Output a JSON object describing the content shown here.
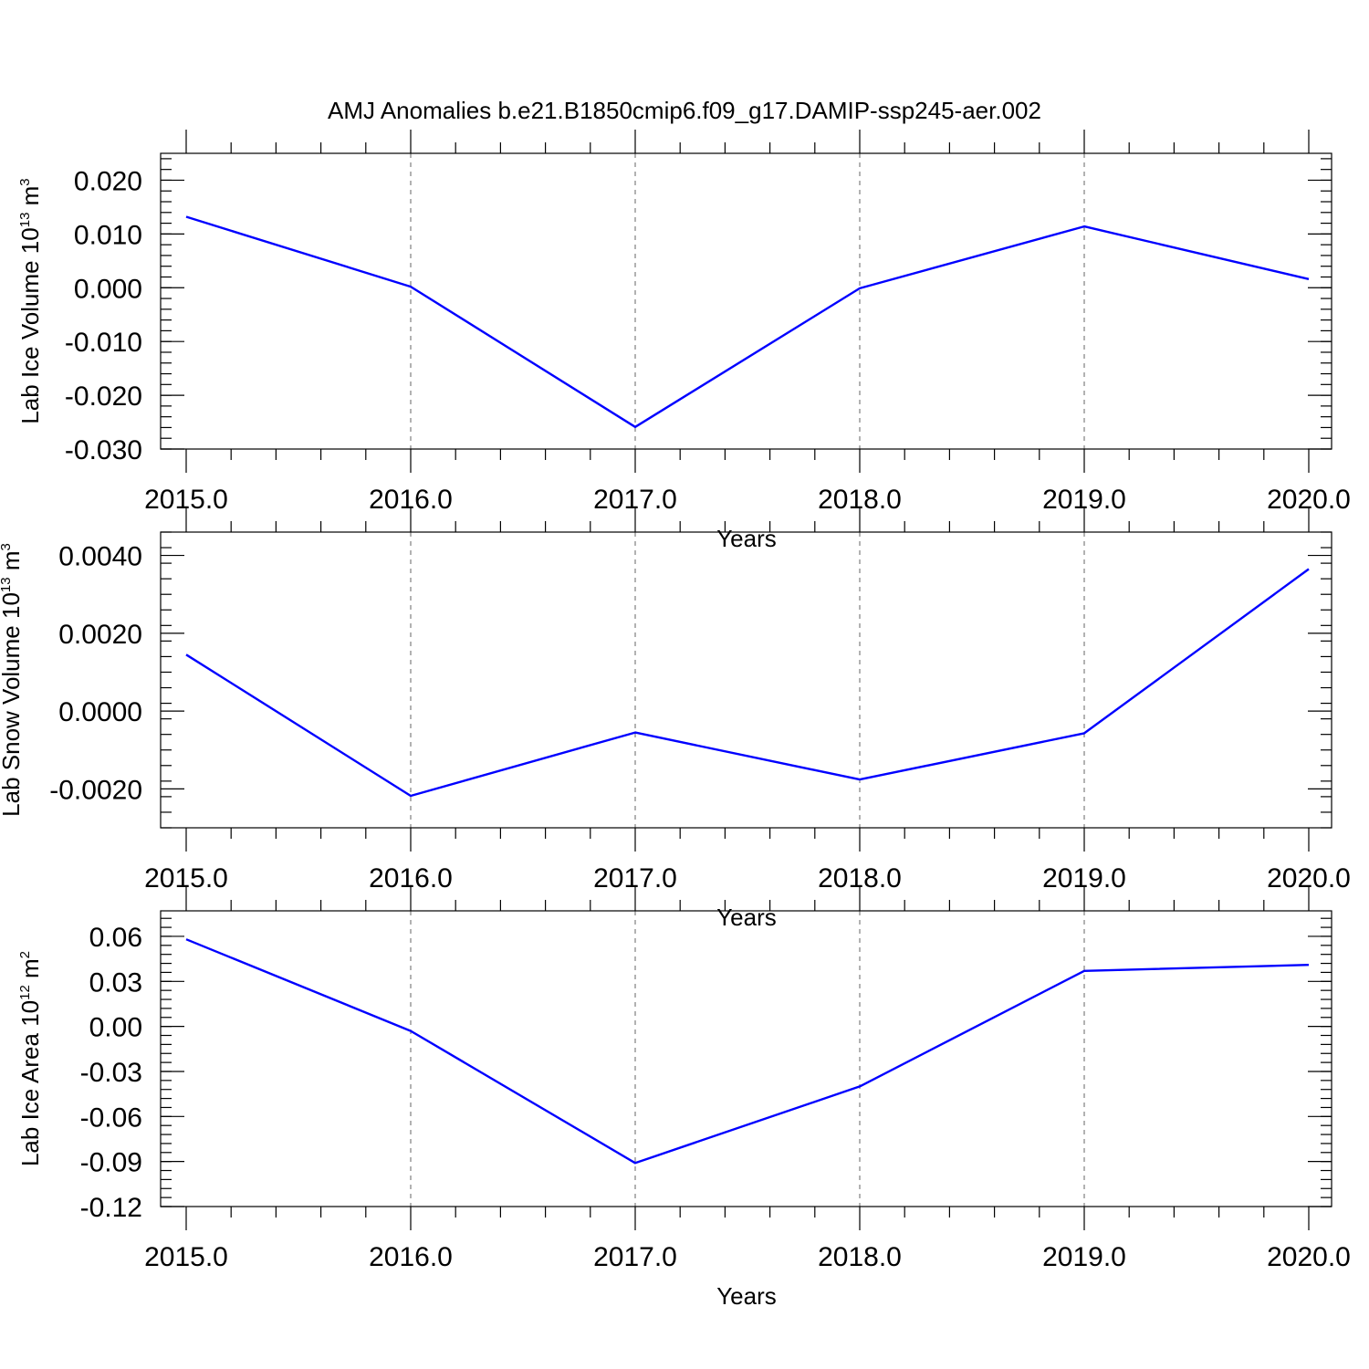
{
  "title": "AMJ Anomalies b.e21.B1850cmip6.f09_g17.DAMIP-ssp245-aer.002",
  "colors": {
    "series": "#0000ff",
    "grid": "#666666"
  },
  "chart_data": [
    {
      "type": "line",
      "x": [
        2015,
        2016,
        2017,
        2018,
        2019,
        2020
      ],
      "series": [
        {
          "values": [
            0.0132,
            0.0002,
            -0.0259,
            -0.0001,
            0.0114,
            0.0016
          ]
        }
      ],
      "xlim": [
        2015,
        2020
      ],
      "ylim": [
        -0.03,
        0.025
      ],
      "xticks": [
        2015,
        2016,
        2017,
        2018,
        2019,
        2020
      ],
      "xtick_labels": [
        "2015.0",
        "2016.0",
        "2017.0",
        "2018.0",
        "2019.0",
        "2020.0"
      ],
      "yticks": [
        0.02,
        0.01,
        0.0,
        -0.01,
        -0.02,
        -0.03
      ],
      "ytick_labels": [
        "0.020",
        "0.010",
        "0.000",
        "-0.010",
        "-0.020",
        "-0.030"
      ],
      "xlabel": "Years",
      "ylabel": {
        "text": "Lab Ice Volume 10",
        "sup": "13",
        "unit": " m",
        "unit_sup": "3"
      },
      "grid": "vertical-dashed"
    },
    {
      "type": "line",
      "x": [
        2015,
        2016,
        2017,
        2018,
        2019,
        2020
      ],
      "series": [
        {
          "values": [
            0.00145,
            -0.00218,
            -0.00055,
            -0.00176,
            -0.00057,
            0.00365
          ]
        }
      ],
      "xlim": [
        2015,
        2020
      ],
      "ylim": [
        -0.003,
        0.0046
      ],
      "xticks": [
        2015,
        2016,
        2017,
        2018,
        2019,
        2020
      ],
      "xtick_labels": [
        "2015.0",
        "2016.0",
        "2017.0",
        "2018.0",
        "2019.0",
        "2020.0"
      ],
      "yticks": [
        0.004,
        0.002,
        0.0,
        -0.002
      ],
      "ytick_labels": [
        "0.0040",
        "0.0020",
        "0.0000",
        "-0.0020"
      ],
      "xlabel": "Years",
      "ylabel": {
        "text": "Lab Snow Volume 10",
        "sup": "13",
        "unit": " m",
        "unit_sup": "3"
      },
      "grid": "vertical-dashed"
    },
    {
      "type": "line",
      "x": [
        2015,
        2016,
        2017,
        2018,
        2019,
        2020
      ],
      "series": [
        {
          "values": [
            0.058,
            -0.003,
            -0.091,
            -0.04,
            0.037,
            0.041
          ]
        }
      ],
      "xlim": [
        2015,
        2020
      ],
      "ylim": [
        -0.12,
        0.077
      ],
      "xticks": [
        2015,
        2016,
        2017,
        2018,
        2019,
        2020
      ],
      "xtick_labels": [
        "2015.0",
        "2016.0",
        "2017.0",
        "2018.0",
        "2019.0",
        "2020.0"
      ],
      "yticks": [
        0.06,
        0.03,
        0.0,
        -0.03,
        -0.06,
        -0.09,
        -0.12
      ],
      "ytick_labels": [
        "0.06",
        "0.03",
        "0.00",
        "-0.03",
        "-0.06",
        "-0.09",
        "-0.12"
      ],
      "xlabel": "Years",
      "ylabel": {
        "text": "Lab Ice Area 10",
        "sup": "12",
        "unit": " m",
        "unit_sup": "2"
      },
      "grid": "vertical-dashed"
    }
  ]
}
